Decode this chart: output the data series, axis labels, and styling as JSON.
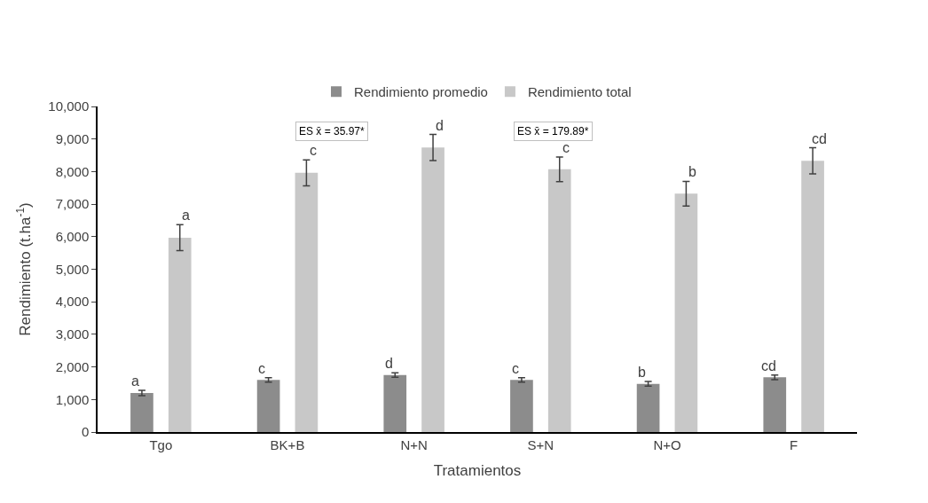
{
  "chart_data": {
    "type": "bar",
    "xlabel": "Tratamientos",
    "ylabel": "Rendimiento (t.ha$^{-1}$)",
    "categories": [
      "Tgo",
      "BK+B",
      "N+N",
      "S+N",
      "N+O",
      "F"
    ],
    "series": [
      {
        "name": "Rendimiento promedio",
        "color": "#8c8c8c",
        "values": [
          1200,
          1600,
          1750,
          1600,
          1480,
          1680
        ],
        "value_labels": [
          "a",
          "c",
          "d",
          "c",
          "b",
          "cd"
        ],
        "errors": [
          80,
          70,
          70,
          70,
          70,
          70
        ]
      },
      {
        "name": "Rendimiento total",
        "color": "#c8c8c8",
        "values": [
          5970,
          7960,
          8740,
          8070,
          7320,
          8330
        ],
        "value_labels": [
          "a",
          "c",
          "d",
          "c",
          "b",
          "cd"
        ],
        "errors": [
          400,
          400,
          400,
          380,
          380,
          400
        ]
      }
    ],
    "ylim": [
      0,
      10000
    ],
    "yticks": [
      {
        "value": 0,
        "label": "0"
      },
      {
        "value": 1000,
        "label": "1,000"
      },
      {
        "value": 2000,
        "label": "2,000"
      },
      {
        "value": 3000,
        "label": "3,000"
      },
      {
        "value": 4000,
        "label": "4,000"
      },
      {
        "value": 5000,
        "label": "5,000"
      },
      {
        "value": 6000,
        "label": "6,000"
      },
      {
        "value": 7000,
        "label": "7,000"
      },
      {
        "value": 8000,
        "label": "8,000"
      },
      {
        "value": 9000,
        "label": "9,000"
      },
      {
        "value": 10000,
        "label": "10,000"
      }
    ],
    "legend": "top",
    "annotations": [
      "ES x̄ = 35.97*",
      "ES x̄ = 179.89*"
    ]
  }
}
